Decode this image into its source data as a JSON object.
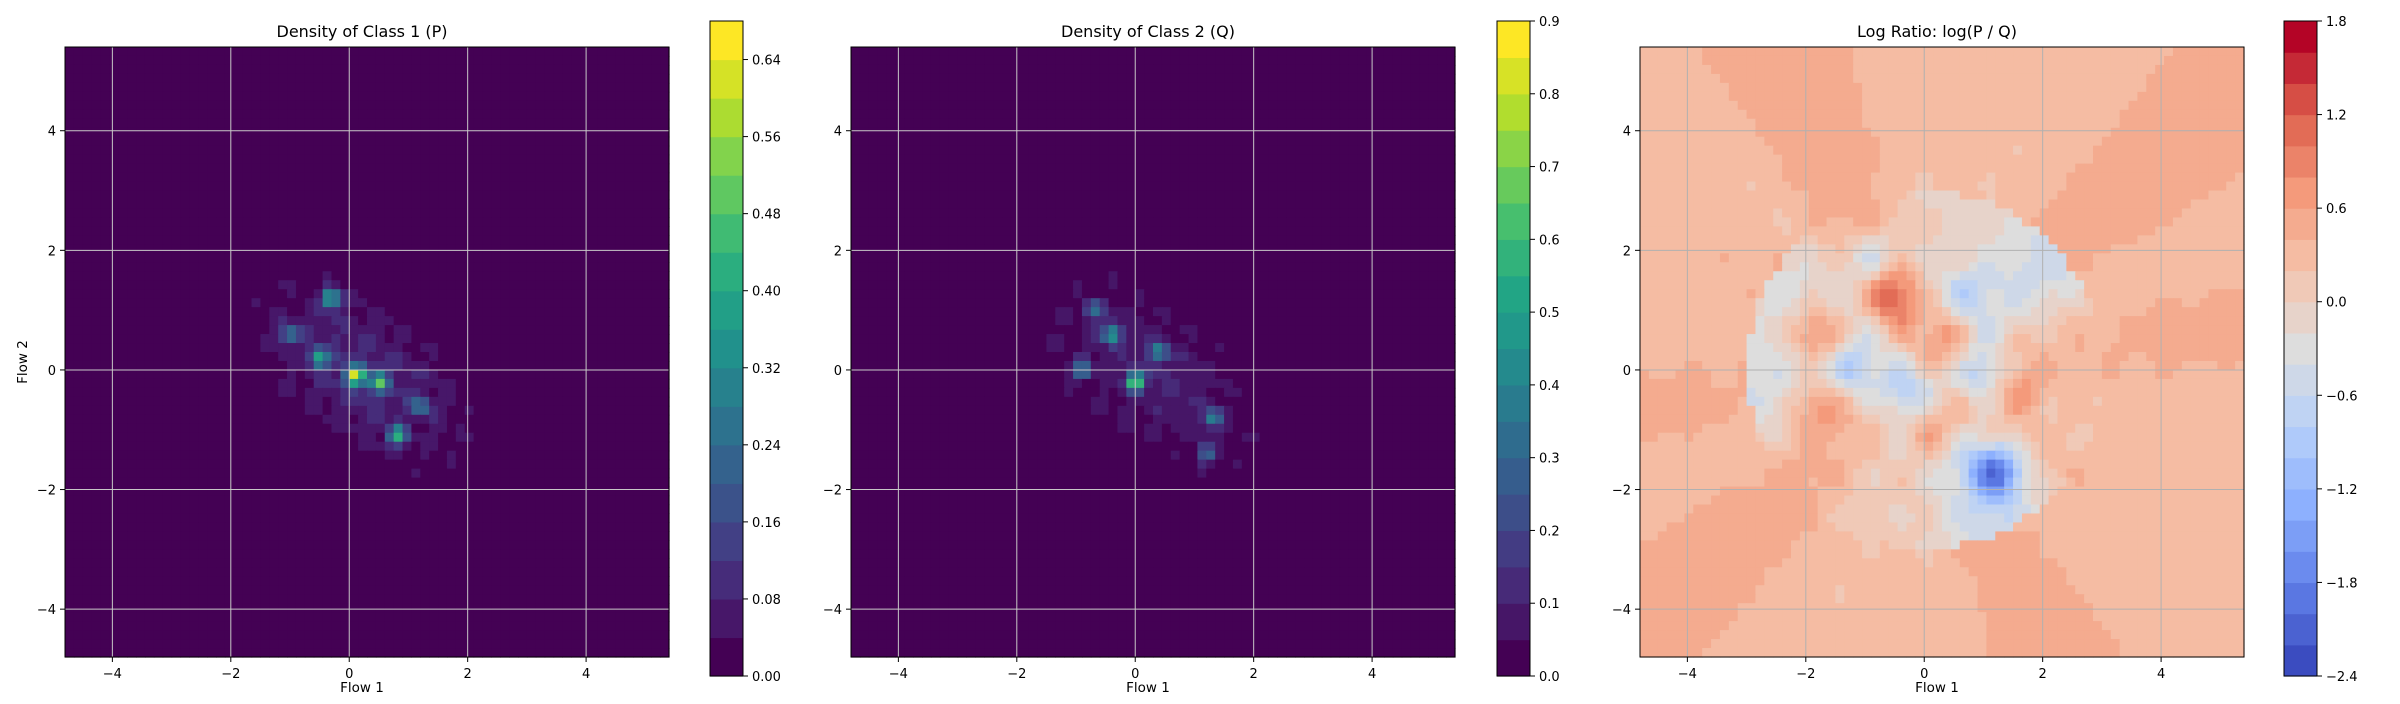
{
  "chart_data": [
    {
      "type": "heatmap",
      "title": "Density of Class 1 (P)",
      "xlabel": "Flow 1",
      "ylabel": "Flow 2",
      "xlim": [
        -4.8,
        5.4
      ],
      "ylim": [
        -4.8,
        5.4
      ],
      "xticks": [
        -4,
        -2,
        0,
        2,
        4
      ],
      "yticks": [
        -4,
        -2,
        0,
        2,
        4
      ],
      "grid": true,
      "colormap": "viridis",
      "colorbar": {
        "range": [
          0.0,
          0.68
        ],
        "ticks": [
          "0.00",
          "0.08",
          "0.16",
          "0.24",
          "0.32",
          "0.40",
          "0.48",
          "0.56",
          "0.64"
        ],
        "tick_values": [
          0.0,
          0.08,
          0.16,
          0.24,
          0.32,
          0.4,
          0.48,
          0.56,
          0.64
        ],
        "levels": 17
      },
      "peaks": [
        {
          "x": 0.1,
          "y": -0.1,
          "z": 0.55
        },
        {
          "x": -0.3,
          "y": 1.2,
          "z": 0.42
        },
        {
          "x": -0.5,
          "y": 0.2,
          "z": 0.35
        },
        {
          "x": 0.5,
          "y": -0.2,
          "z": 0.4
        },
        {
          "x": 0.8,
          "y": -1.1,
          "z": 0.38
        },
        {
          "x": -1.0,
          "y": 0.6,
          "z": 0.25
        },
        {
          "x": 1.2,
          "y": -0.6,
          "z": 0.22
        }
      ]
    },
    {
      "type": "heatmap",
      "title": "Density of Class 2 (Q)",
      "xlabel": "Flow 1",
      "ylabel": "",
      "xlim": [
        -4.8,
        5.4
      ],
      "ylim": [
        -4.8,
        5.4
      ],
      "xticks": [
        -4,
        -2,
        0,
        2,
        4
      ],
      "yticks": [
        -4,
        -2,
        0,
        2,
        4
      ],
      "grid": true,
      "colormap": "viridis",
      "colorbar": {
        "range": [
          0.0,
          0.9
        ],
        "ticks": [
          "0.0",
          "0.1",
          "0.2",
          "0.3",
          "0.4",
          "0.5",
          "0.6",
          "0.7",
          "0.8",
          "0.9"
        ],
        "tick_values": [
          0.0,
          0.1,
          0.2,
          0.3,
          0.4,
          0.5,
          0.6,
          0.7,
          0.8,
          0.9
        ],
        "levels": 18
      },
      "peaks": [
        {
          "x": 0.0,
          "y": -0.2,
          "z": 0.6
        },
        {
          "x": -0.4,
          "y": 0.6,
          "z": 0.45
        },
        {
          "x": -0.9,
          "y": 0.0,
          "z": 0.35
        },
        {
          "x": 0.4,
          "y": 0.3,
          "z": 0.35
        },
        {
          "x": 1.3,
          "y": -0.8,
          "z": 0.35
        },
        {
          "x": 1.2,
          "y": -1.4,
          "z": 0.3
        },
        {
          "x": -0.7,
          "y": 1.0,
          "z": 0.3
        }
      ]
    },
    {
      "type": "heatmap",
      "title": "Log Ratio: log(P / Q)",
      "xlabel": "Flow 1",
      "ylabel": "",
      "xlim": [
        -4.8,
        5.4
      ],
      "ylim": [
        -4.8,
        5.4
      ],
      "xticks": [
        -4,
        -2,
        0,
        2,
        4
      ],
      "yticks": [
        -4,
        -2,
        0,
        2,
        4
      ],
      "grid": true,
      "colormap": "coolwarm",
      "colorbar": {
        "range": [
          -2.4,
          1.8
        ],
        "ticks": [
          "−2.4",
          "−1.8",
          "−1.2",
          "−0.6",
          "0.0",
          "0.6",
          "1.2",
          "1.8"
        ],
        "tick_values": [
          -2.4,
          -1.8,
          -1.2,
          -0.6,
          0.0,
          0.6,
          1.2,
          1.8
        ],
        "levels": 21
      },
      "blobs": [
        {
          "x": -1.8,
          "y": 0.6,
          "v": 0.9
        },
        {
          "x": -0.5,
          "y": 1.2,
          "v": 1.0
        },
        {
          "x": 0.3,
          "y": 0.5,
          "v": 0.8
        },
        {
          "x": 0.2,
          "y": -0.9,
          "v": 0.7
        },
        {
          "x": 1.6,
          "y": -0.3,
          "v": 0.6
        },
        {
          "x": -1.8,
          "y": -0.6,
          "v": 0.8
        },
        {
          "x": -0.9,
          "y": 1.9,
          "v": -0.8
        },
        {
          "x": -0.3,
          "y": -0.4,
          "v": -0.9
        },
        {
          "x": 1.0,
          "y": 0.0,
          "v": -0.9
        },
        {
          "x": 1.2,
          "y": -1.7,
          "v": -1.7
        },
        {
          "x": -1.2,
          "y": 0.1,
          "v": -0.7
        },
        {
          "x": 0.7,
          "y": 1.3,
          "v": -0.6
        }
      ]
    }
  ]
}
